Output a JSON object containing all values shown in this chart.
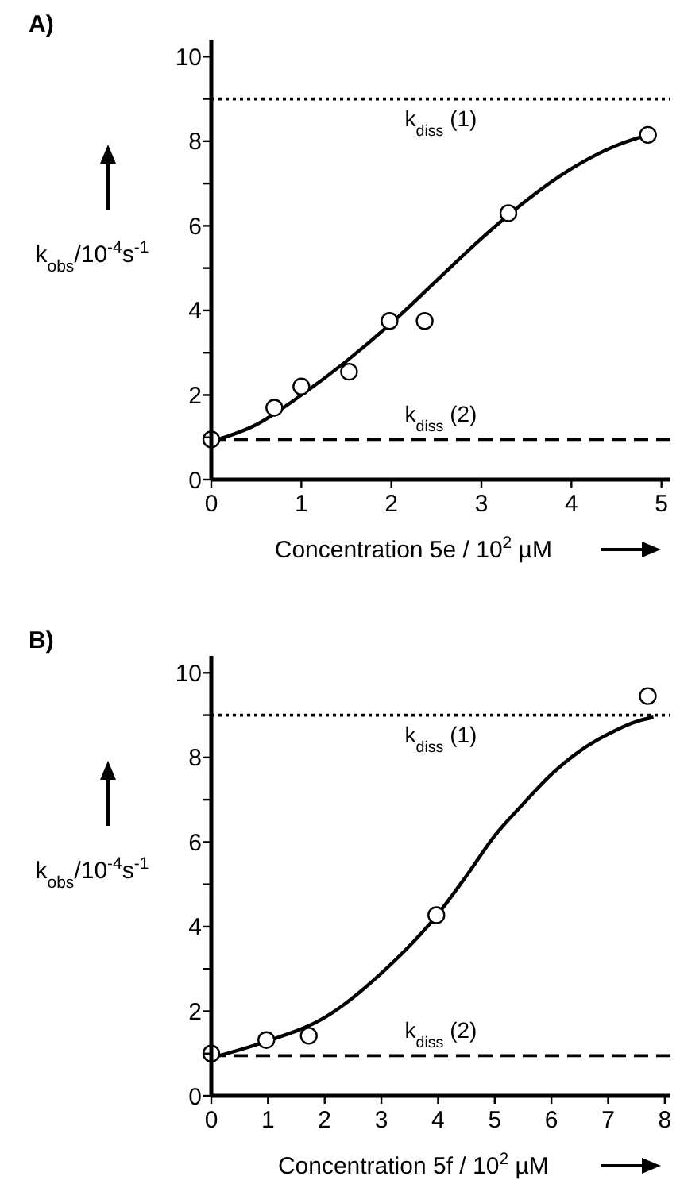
{
  "chart_data": [
    {
      "type": "scatter",
      "title": "A)",
      "xlabel": "Concentration 5e / 10$^{2}$ µM",
      "ylabel": "k$_{obs}$/10$^{-4}$s$^{-1}$",
      "xlim": [
        0,
        5.1
      ],
      "ylim": [
        0,
        10.4
      ],
      "xticks": [
        0,
        1,
        2,
        3,
        4,
        5
      ],
      "yticks": [
        0,
        {
          "value": 1,
          "label": null
        },
        2,
        {
          "value": 3,
          "label": null
        },
        4,
        {
          "value": 5,
          "label": null
        },
        6,
        {
          "value": 7,
          "label": null
        },
        8,
        {
          "value": 9,
          "label": null
        },
        10
      ],
      "grid": false,
      "series": [
        {
          "type": "line",
          "color": "#000000",
          "line_style": "solid",
          "x": [
            0,
            0.5,
            1,
            1.5,
            2,
            2.5,
            3,
            3.5,
            4,
            4.5,
            4.85
          ],
          "values": [
            0.9,
            1.3,
            2.0,
            2.8,
            3.7,
            4.7,
            5.7,
            6.6,
            7.35,
            7.9,
            8.15
          ]
        },
        {
          "color": "#000000",
          "marker": "circle",
          "x": [
            0,
            0.7,
            1.0,
            1.53,
            1.98,
            2.37,
            3.3,
            4.85
          ],
          "values": [
            0.95,
            1.7,
            2.2,
            2.55,
            3.75,
            3.75,
            6.3,
            8.15
          ]
        }
      ],
      "ref_lines": [
        {
          "axis": "y",
          "value": 9,
          "label": "k$_{diss}$ (1)",
          "line_style": "dotted",
          "color": "#000000"
        },
        {
          "axis": "y",
          "value": 0.95,
          "label": "k$_{diss}$ (2)",
          "line_style": "dashed",
          "color": "#000000"
        }
      ]
    },
    {
      "type": "scatter",
      "title": "B)",
      "xlabel": "Concentration 5f / 10$^{2}$ µM",
      "ylabel": "k$_{obs}$/10$^{-4}$s$^{-1}$",
      "xlim": [
        0,
        8.1
      ],
      "ylim": [
        0,
        10.4
      ],
      "xticks": [
        0,
        1,
        2,
        3,
        4,
        5,
        6,
        7,
        8
      ],
      "yticks": [
        0,
        {
          "value": 1,
          "label": null
        },
        2,
        {
          "value": 3,
          "label": null
        },
        4,
        {
          "value": 5,
          "label": null
        },
        6,
        {
          "value": 7,
          "label": null
        },
        8,
        {
          "value": 9,
          "label": null
        },
        10
      ],
      "grid": false,
      "series": [
        {
          "type": "line",
          "color": "#000000",
          "line_style": "solid",
          "x": [
            0,
            1,
            2,
            3,
            4,
            4.5,
            5,
            5.5,
            6,
            6.5,
            7,
            7.5,
            7.8
          ],
          "values": [
            0.9,
            1.3,
            1.85,
            2.9,
            4.3,
            5.2,
            6.15,
            6.9,
            7.6,
            8.15,
            8.55,
            8.85,
            8.95
          ]
        },
        {
          "color": "#000000",
          "marker": "circle",
          "x": [
            0,
            0.97,
            1.72,
            3.97,
            7.7
          ],
          "values": [
            1.0,
            1.32,
            1.42,
            4.27,
            9.45
          ]
        }
      ],
      "ref_lines": [
        {
          "axis": "y",
          "value": 9,
          "label": "k$_{diss}$ (1)",
          "line_style": "dotted",
          "color": "#000000"
        },
        {
          "axis": "y",
          "value": 0.95,
          "label": "k$_{diss}$ (2)",
          "line_style": "dashed",
          "color": "#000000"
        }
      ]
    }
  ]
}
